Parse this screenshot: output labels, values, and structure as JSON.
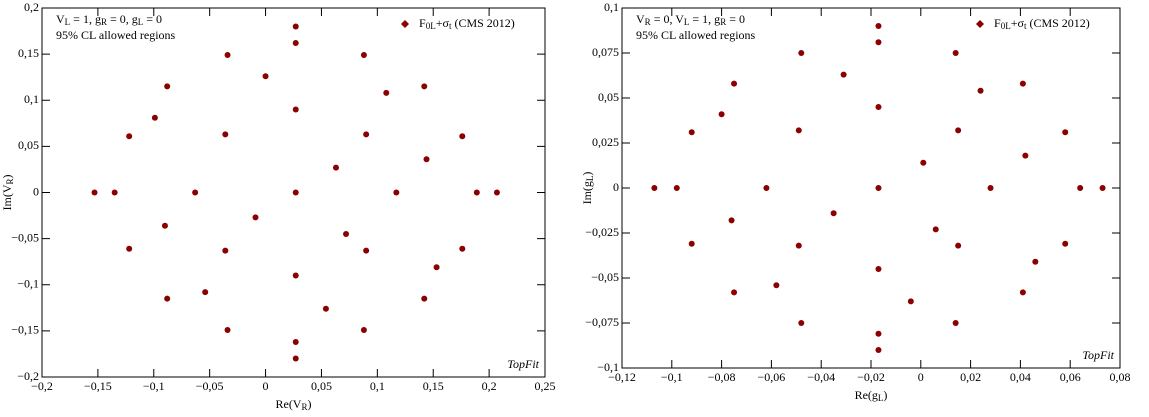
{
  "chart_data": [
    {
      "type": "scatter",
      "color": "#8b0000",
      "annotation": [
        "V",
        "L",
        " = 1, g",
        "R",
        " = 0, g",
        "L",
        " = 0"
      ],
      "annotation2": "95% CL allowed regions",
      "series": [
        {
          "name": [
            "F",
            "0L",
            "+σ",
            "t",
            " (CMS 2012)"
          ],
          "color": "#8b0000",
          "x": [
            0.027,
            0.117,
            -0.063,
            0.027,
            0.027,
            0.09,
            -0.036,
            0.09,
            -0.036,
            0.189,
            -0.135,
            0.027,
            0.027,
            0.142,
            -0.088,
            0.142,
            -0.088,
            0.176,
            -0.122,
            0.176,
            -0.122,
            0.088,
            -0.034,
            0.088,
            -0.034,
            0.063,
            -0.009,
            0.144,
            -0.09,
            0.054,
            0,
            0.108,
            -0.054,
            0.153,
            -0.099,
            0.207,
            -0.153,
            0.027,
            0.027,
            0.072
          ],
          "values": [
            0,
            0,
            0,
            0.09,
            -0.09,
            0.063,
            0.063,
            -0.063,
            -0.063,
            0,
            0,
            0.162,
            -0.162,
            0.115,
            0.115,
            -0.115,
            -0.115,
            0.061,
            0.061,
            -0.061,
            -0.061,
            0.149,
            0.149,
            -0.149,
            -0.149,
            0.027,
            -0.027,
            0.036,
            -0.036,
            -0.126,
            0.126,
            0.108,
            -0.108,
            -0.081,
            0.081,
            0,
            0,
            0.18,
            -0.18,
            -0.045
          ]
        }
      ],
      "xlabel": [
        "Re(V",
        "R",
        ")"
      ],
      "ylabel": [
        "Im(V",
        "R",
        ")"
      ],
      "watermark": "TopFit",
      "xlim": [
        -0.2,
        0.25
      ],
      "xticks": [
        {
          "value": -0.2,
          "label": "−0,2"
        },
        {
          "value": -0.15,
          "label": "−0,15"
        },
        {
          "value": -0.1,
          "label": "−0,1"
        },
        {
          "value": -0.05,
          "label": "−0,05"
        },
        0,
        {
          "value": 0.05,
          "label": "0,05"
        },
        {
          "value": 0.1,
          "label": "0,1"
        },
        {
          "value": 0.15,
          "label": "0,15"
        },
        {
          "value": 0.2,
          "label": "0,2"
        },
        {
          "value": 0.25,
          "label": "0,25"
        }
      ],
      "ylim": [
        -0.2,
        0.2
      ],
      "yticks": [
        {
          "value": -0.2,
          "label": "−0,2"
        },
        {
          "value": -0.15,
          "label": "−0,15"
        },
        {
          "value": -0.1,
          "label": "−0,1"
        },
        {
          "value": -0.05,
          "label": "−0,05"
        },
        0,
        {
          "value": 0.05,
          "label": "0,05"
        },
        {
          "value": 0.1,
          "label": "0,1"
        },
        {
          "value": 0.15,
          "label": "0,15"
        },
        {
          "value": 0.2,
          "label": "0,2"
        }
      ]
    },
    {
      "type": "scatter",
      "color": "#8b0000",
      "annotation": [
        "V",
        "R",
        " = 0, V",
        "L",
        " = 1, g",
        "R",
        " = 0"
      ],
      "annotation2": "95% CL allowed regions",
      "series": [
        {
          "name": [
            "F",
            "0L",
            "+σ",
            "t",
            " (CMS 2012)"
          ],
          "color": "#8b0000",
          "x": [
            -0.017,
            0.028,
            -0.062,
            -0.017,
            -0.017,
            0.015,
            -0.049,
            0.015,
            -0.049,
            0.064,
            -0.098,
            -0.017,
            -0.017,
            0.041,
            -0.075,
            0.041,
            -0.075,
            0.058,
            -0.092,
            0.058,
            -0.092,
            0.014,
            -0.048,
            0.014,
            -0.048,
            0.001,
            -0.035,
            0.042,
            -0.076,
            -0.004,
            -0.031,
            0.024,
            -0.058,
            0.046,
            -0.08,
            0.073,
            -0.107,
            -0.017,
            -0.017,
            0.006
          ],
          "values": [
            0,
            0,
            0,
            0.045,
            -0.045,
            0.032,
            0.032,
            -0.032,
            -0.032,
            0,
            0,
            0.081,
            -0.081,
            0.058,
            0.058,
            -0.058,
            -0.058,
            0.031,
            0.031,
            -0.031,
            -0.031,
            0.075,
            0.075,
            -0.075,
            -0.075,
            0.014,
            -0.014,
            0.018,
            -0.018,
            -0.063,
            0.063,
            0.054,
            -0.054,
            -0.041,
            0.041,
            0,
            0,
            0.09,
            -0.09,
            -0.023
          ]
        }
      ],
      "xlabel": [
        "Re(g",
        "L",
        ")"
      ],
      "ylabel": [
        "Im(g",
        "L",
        ")"
      ],
      "watermark": "TopFit",
      "xlim": [
        -0.12,
        0.08
      ],
      "xticks": [
        {
          "value": -0.12,
          "label": "−0,12"
        },
        {
          "value": -0.1,
          "label": "−0,1"
        },
        {
          "value": -0.08,
          "label": "−0,08"
        },
        {
          "value": -0.06,
          "label": "−0,06"
        },
        {
          "value": -0.04,
          "label": "−0,04"
        },
        {
          "value": -0.02,
          "label": "−0,02"
        },
        0,
        {
          "value": 0.02,
          "label": "0,02"
        },
        {
          "value": 0.04,
          "label": "0,04"
        },
        {
          "value": 0.06,
          "label": "0,06"
        },
        {
          "value": 0.08,
          "label": "0,08"
        }
      ],
      "ylim": [
        -0.1,
        0.1
      ],
      "yticks": [
        {
          "value": -0.1,
          "label": "−0,1"
        },
        {
          "value": -0.075,
          "label": "−0,075"
        },
        {
          "value": -0.05,
          "label": "−0,05"
        },
        {
          "value": -0.025,
          "label": "−0,025"
        },
        0,
        {
          "value": 0.025,
          "label": "0,025"
        },
        {
          "value": 0.05,
          "label": "0,05"
        },
        {
          "value": 0.075,
          "label": "0,075"
        },
        {
          "value": 0.1,
          "label": "0,1"
        }
      ]
    }
  ]
}
